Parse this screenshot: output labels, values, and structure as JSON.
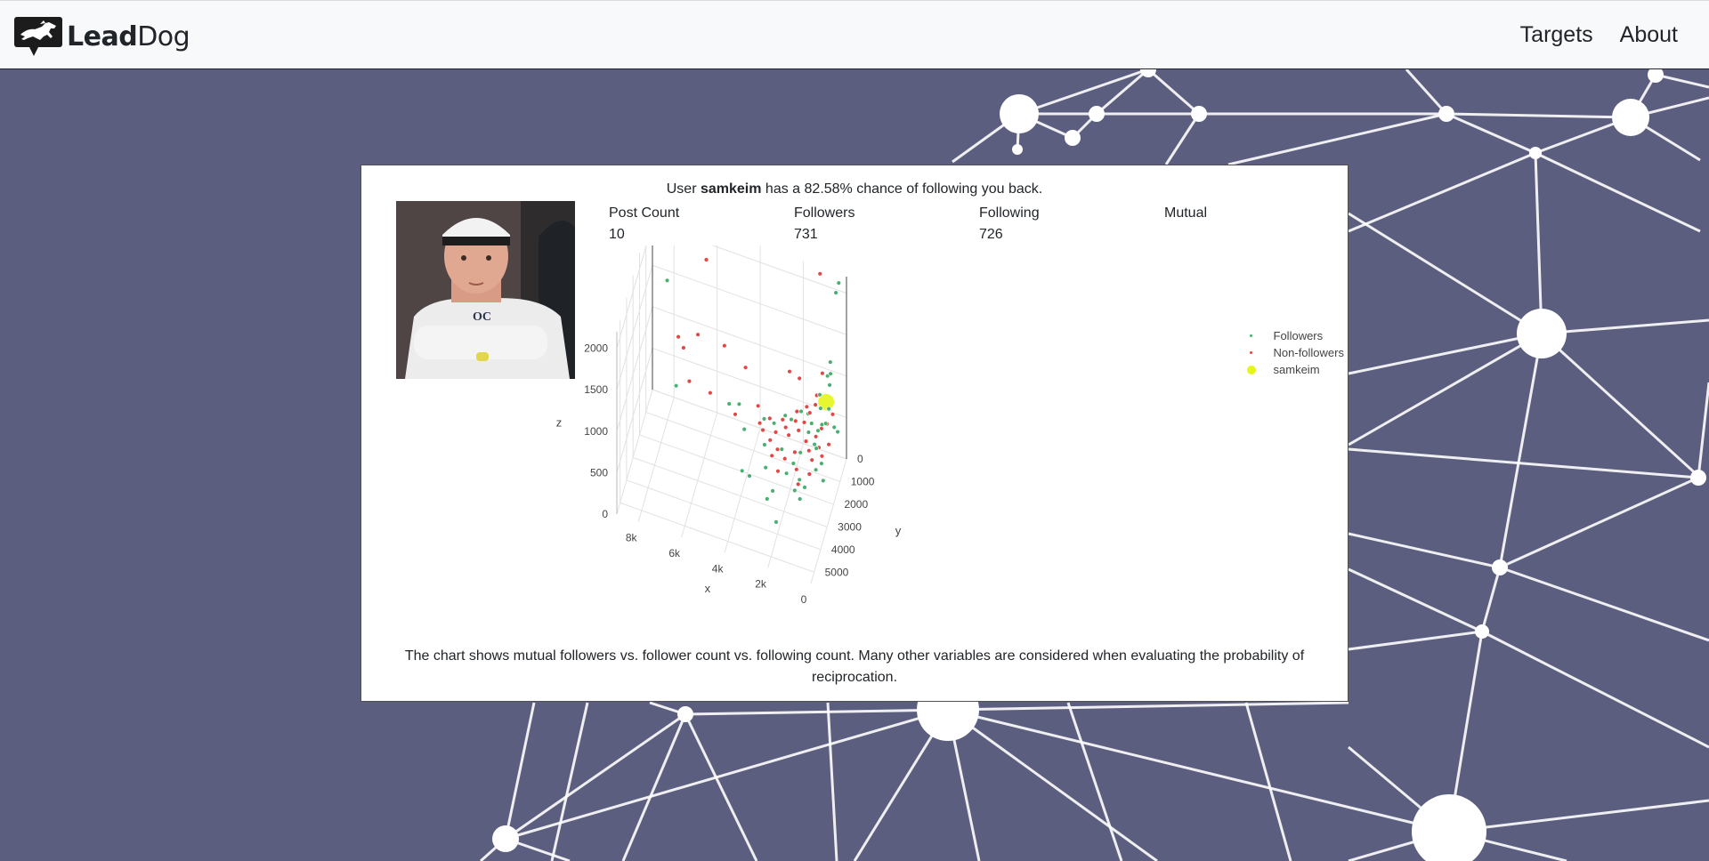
{
  "brand": {
    "name_bold": "Lead",
    "name_regular": "Dog",
    "logo_icon": "running-horse-logo"
  },
  "nav": {
    "items": [
      {
        "label": "Targets"
      },
      {
        "label": "About"
      }
    ]
  },
  "profile": {
    "headline_prefix": "User ",
    "username": "samkeim",
    "headline_suffix": " has a 82.58% chance of following you back.",
    "stats": [
      {
        "label": "Post Count",
        "value": "10"
      },
      {
        "label": "Followers",
        "value": "731"
      },
      {
        "label": "Following",
        "value": "726"
      },
      {
        "label": "Mutual",
        "value": ""
      }
    ],
    "caption": "The chart shows mutual followers vs. follower count vs. following count. Many other variables are considered when evaluating the probability of reciprocation."
  },
  "colors": {
    "follower": "#4caf72",
    "non_follower": "#e04848",
    "target": "#e5f51a",
    "background": "#5c5e7f"
  },
  "chart_data": {
    "type": "scatter",
    "dimensions": "3d",
    "axes": {
      "x": {
        "title": "x",
        "ticks": [
          "0",
          "2k",
          "4k",
          "6k",
          "8k"
        ],
        "range": [
          0,
          9000
        ]
      },
      "y": {
        "title": "y",
        "ticks": [
          "0",
          "1000",
          "2000",
          "3000",
          "4000",
          "5000"
        ],
        "range": [
          0,
          5500
        ]
      },
      "z": {
        "title": "z",
        "ticks": [
          "0",
          "500",
          "1000",
          "1500",
          "2000"
        ],
        "range": [
          0,
          2200
        ]
      }
    },
    "legend": {
      "position": "top-right",
      "entries": [
        "Followers",
        "Non-followers",
        "samkeim"
      ]
    },
    "series": [
      {
        "name": "Followers",
        "color": "#4caf72",
        "size": "small",
        "points": [
          [
            8200,
            400,
            1500
          ],
          [
            300,
            200,
            2150
          ],
          [
            400,
            300,
            2050
          ],
          [
            600,
            500,
            1250
          ],
          [
            500,
            800,
            1200
          ],
          [
            700,
            600,
            1100
          ],
          [
            900,
            1000,
            800
          ],
          [
            600,
            1200,
            700
          ],
          [
            7600,
            1000,
            450
          ],
          [
            5200,
            800,
            400
          ],
          [
            4800,
            600,
            380
          ],
          [
            3000,
            2500,
            300
          ],
          [
            3600,
            3000,
            280
          ],
          [
            2400,
            3400,
            320
          ],
          [
            2000,
            4200,
            200
          ],
          [
            4000,
            2800,
            250
          ],
          [
            2600,
            3600,
            260
          ],
          [
            3200,
            2000,
            420
          ],
          [
            4200,
            1800,
            460
          ],
          [
            2800,
            1600,
            500
          ],
          [
            1800,
            2200,
            380
          ],
          [
            1400,
            2600,
            330
          ],
          [
            1600,
            1800,
            420
          ],
          [
            1000,
            1600,
            520
          ],
          [
            800,
            2000,
            600
          ],
          [
            1200,
            1400,
            700
          ],
          [
            600,
            1800,
            850
          ],
          [
            400,
            1400,
            950
          ],
          [
            300,
            900,
            600
          ],
          [
            200,
            700,
            500
          ],
          [
            700,
            2400,
            460
          ],
          [
            1500,
            3000,
            300
          ],
          [
            3400,
            1400,
            550
          ],
          [
            2200,
            1200,
            600
          ],
          [
            1800,
            1000,
            680
          ],
          [
            1000,
            800,
            900
          ],
          [
            600,
            600,
            1000
          ],
          [
            2000,
            2600,
            350
          ],
          [
            1200,
            3200,
            280
          ],
          [
            2400,
            2000,
            440
          ],
          [
            3000,
            1200,
            480
          ],
          [
            2600,
            800,
            500
          ],
          [
            1600,
            600,
            560
          ],
          [
            1400,
            1200,
            520
          ],
          [
            900,
            1400,
            640
          ],
          [
            500,
            2200,
            500
          ],
          [
            300,
            2600,
            420
          ],
          [
            1100,
            2800,
            320
          ]
        ]
      },
      {
        "name": "Non-followers",
        "color": "#e04848",
        "size": "small",
        "points": [
          [
            6200,
            1000,
            2100
          ],
          [
            1200,
            100,
            2150
          ],
          [
            7200,
            2000,
            1350
          ],
          [
            7200,
            1200,
            1000
          ],
          [
            6800,
            300,
            950
          ],
          [
            5600,
            200,
            900
          ],
          [
            4200,
            1600,
            1150
          ],
          [
            2400,
            800,
            1050
          ],
          [
            2000,
            600,
            950
          ],
          [
            1000,
            400,
            1050
          ],
          [
            7200,
            300,
            350
          ],
          [
            6200,
            400,
            330
          ],
          [
            4800,
            1200,
            420
          ],
          [
            3600,
            1400,
            480
          ],
          [
            3000,
            1800,
            440
          ],
          [
            2600,
            2000,
            420
          ],
          [
            2200,
            1600,
            520
          ],
          [
            1800,
            1400,
            560
          ],
          [
            1600,
            1200,
            620
          ],
          [
            1400,
            1000,
            700
          ],
          [
            1200,
            800,
            760
          ],
          [
            2000,
            1200,
            600
          ],
          [
            2400,
            1400,
            540
          ],
          [
            2800,
            1600,
            500
          ],
          [
            1000,
            1400,
            560
          ],
          [
            800,
            1200,
            620
          ],
          [
            1400,
            1600,
            520
          ],
          [
            1800,
            2000,
            460
          ],
          [
            2200,
            2200,
            400
          ],
          [
            1200,
            1800,
            480
          ],
          [
            600,
            1000,
            640
          ],
          [
            400,
            800,
            720
          ],
          [
            1600,
            2400,
            380
          ],
          [
            1000,
            2000,
            440
          ],
          [
            800,
            1600,
            500
          ],
          [
            3200,
            1200,
            520
          ],
          [
            3800,
            1000,
            560
          ],
          [
            2000,
            1000,
            660
          ],
          [
            1600,
            800,
            700
          ],
          [
            1200,
            600,
            820
          ],
          [
            2600,
            1200,
            560
          ],
          [
            3400,
            1600,
            470
          ],
          [
            2800,
            2200,
            380
          ],
          [
            2400,
            2600,
            340
          ],
          [
            1400,
            2800,
            330
          ],
          [
            1000,
            2400,
            380
          ],
          [
            600,
            1800,
            470
          ],
          [
            400,
            1400,
            520
          ]
        ]
      },
      {
        "name": "samkeim",
        "color": "#e5f51a",
        "size": "large",
        "points": [
          [
            726,
            731,
            820
          ]
        ]
      }
    ]
  }
}
